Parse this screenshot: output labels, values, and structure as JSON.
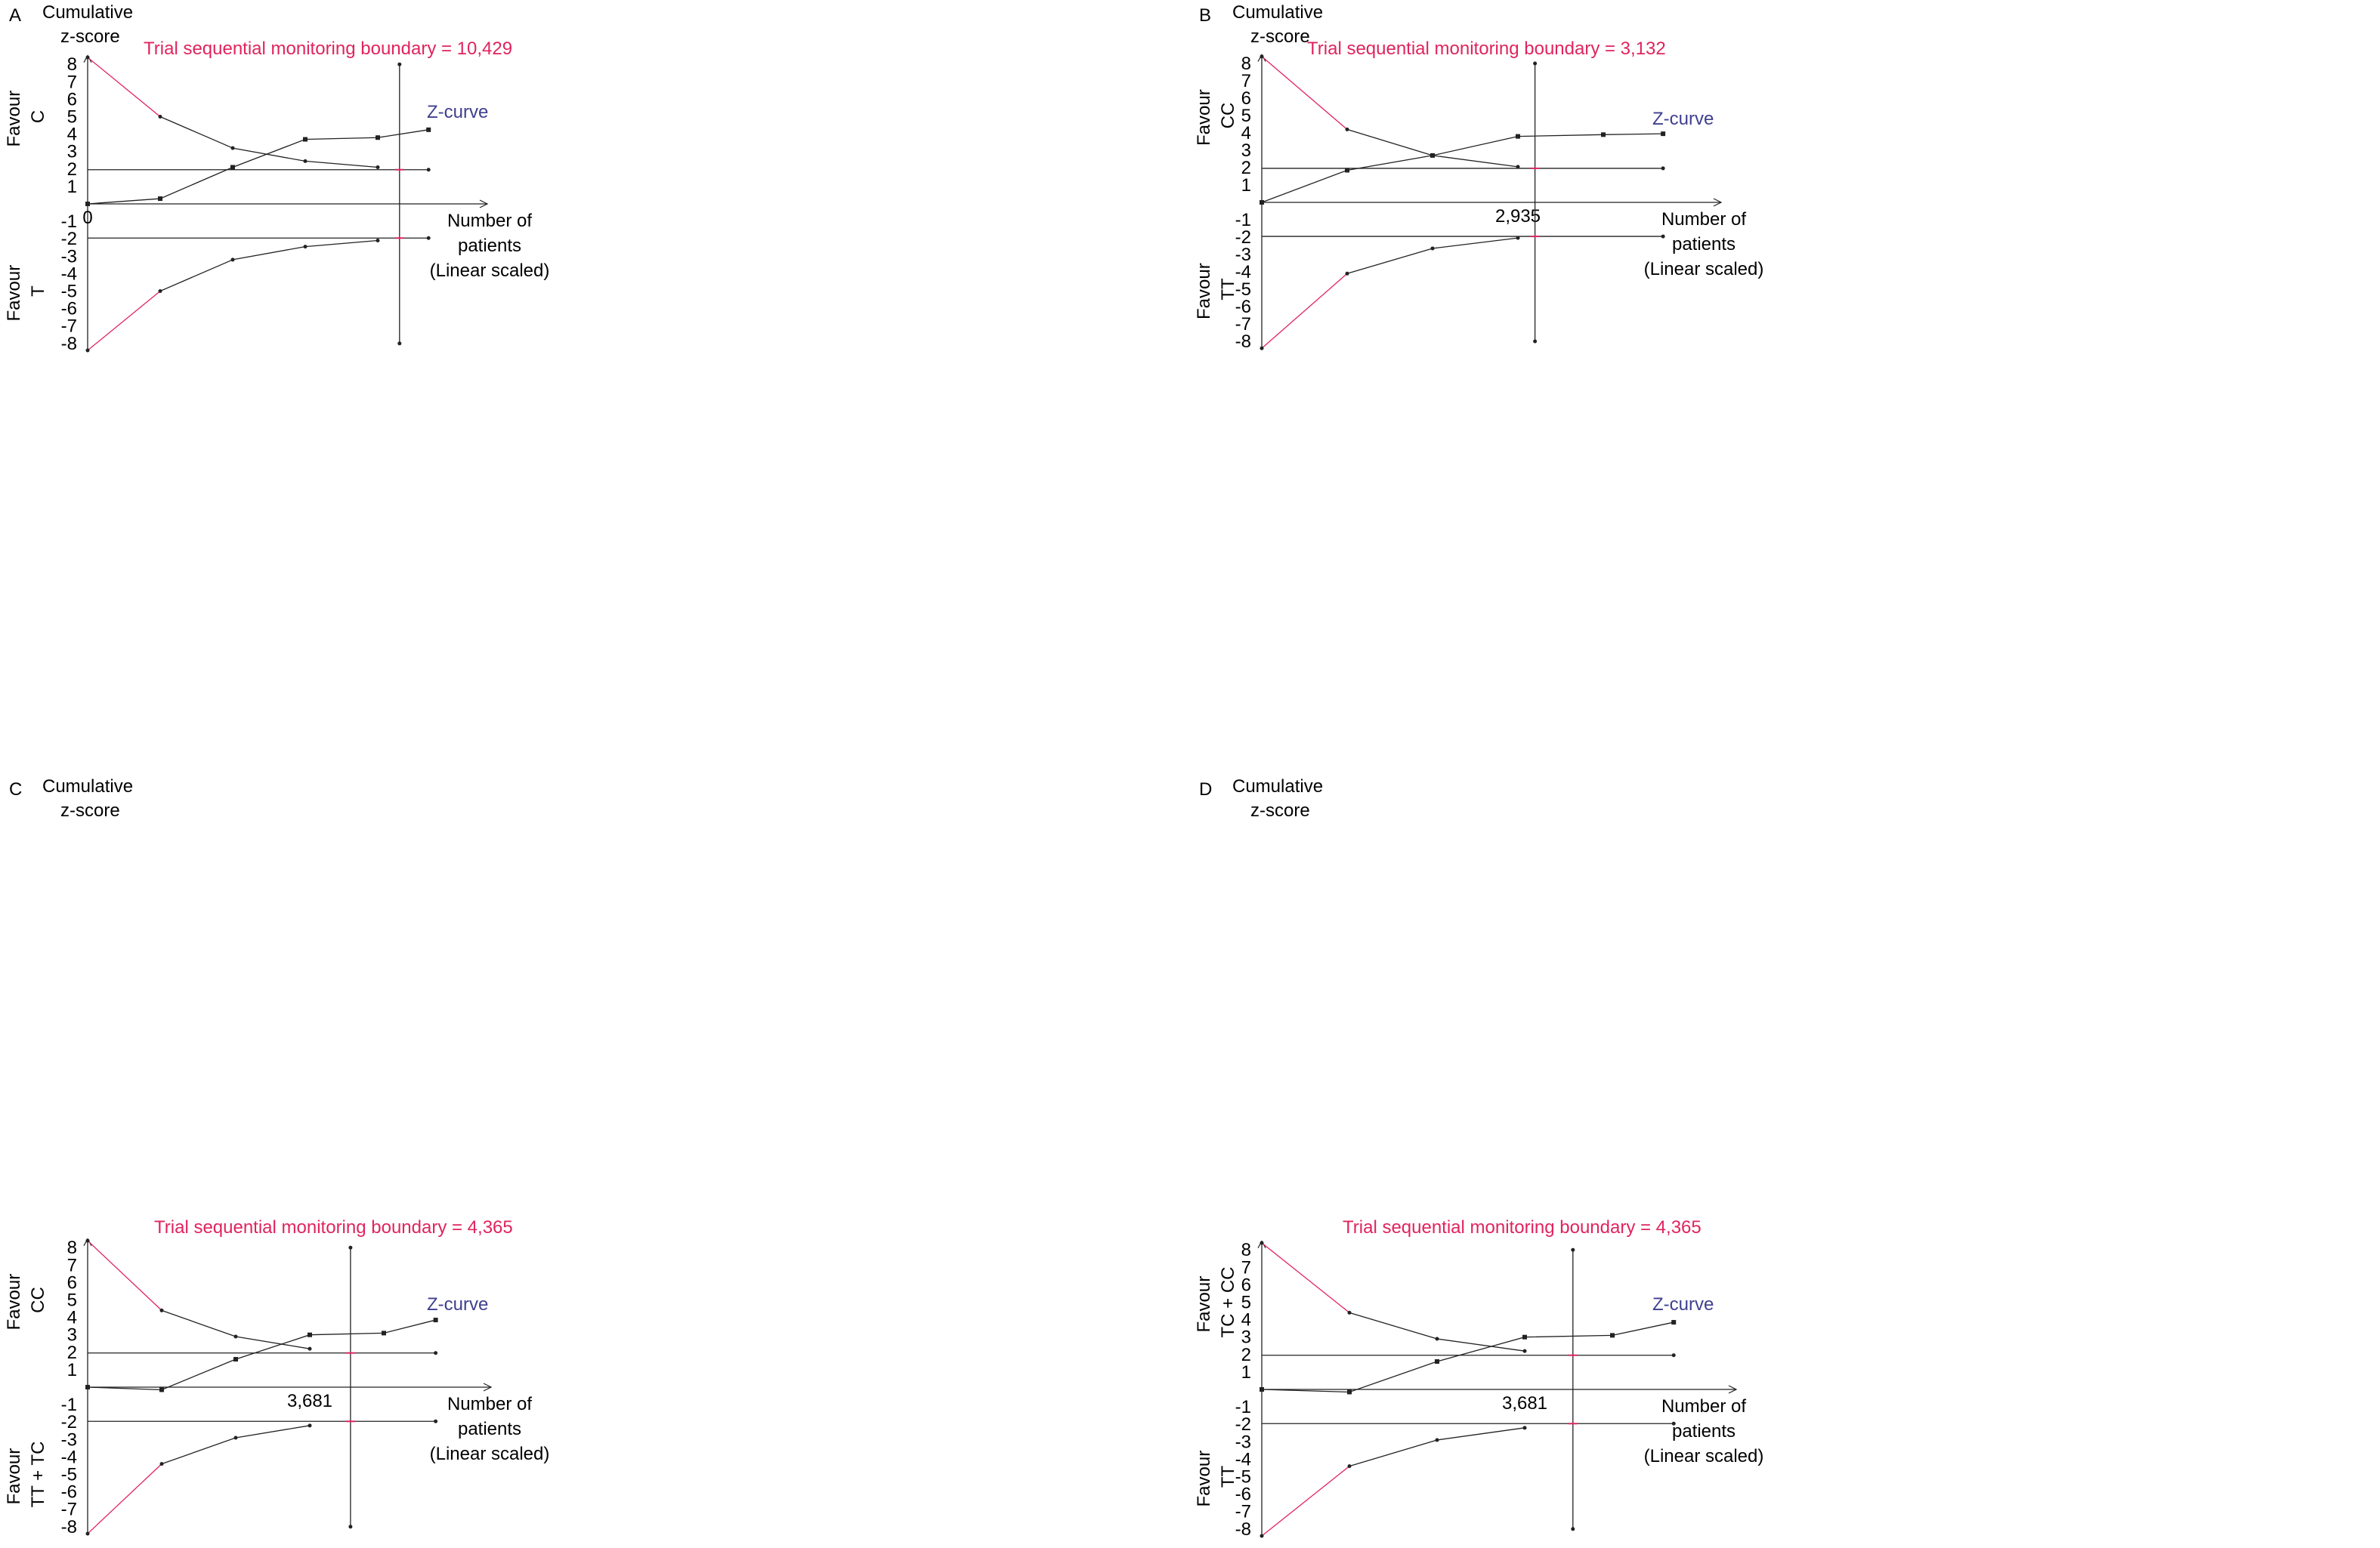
{
  "chart_data": [
    {
      "panel": "A",
      "type": "line",
      "title_line1": "Cumulative",
      "title_line2": "z-score",
      "favour_top": "Favour",
      "favour_top_group": "C",
      "favour_bottom": "Favour",
      "favour_bottom_group": "T",
      "boundary_label": "Trial sequential monitoring boundary = 10,429",
      "zcurve_label": "Z-curve",
      "xlabel_lines": [
        "Number of",
        "patients",
        "(Linear scaled)"
      ],
      "x_tick_label": "0",
      "x_tick_value": 0,
      "required_information_size": 10429,
      "yticks": [
        "8",
        "7",
        "6",
        "5",
        "4",
        "3",
        "2",
        "1",
        "-1",
        "-2",
        "-3",
        "-4",
        "-5",
        "-6",
        "-7",
        "-8"
      ],
      "ylim": [
        -8.5,
        8.5
      ],
      "z_curve": [
        [
          0,
          0
        ],
        [
          1,
          0.3
        ],
        [
          2,
          2.1
        ],
        [
          3,
          3.7
        ],
        [
          4,
          3.8
        ],
        [
          4.7,
          4.25
        ]
      ],
      "upper_boundary": [
        [
          0,
          8.4
        ],
        [
          1,
          5.0
        ],
        [
          2,
          3.2
        ],
        [
          3,
          2.45
        ],
        [
          4,
          2.1
        ]
      ],
      "lower_boundary": [
        [
          0,
          -8.4
        ],
        [
          1,
          -5.0
        ],
        [
          2,
          -3.2
        ],
        [
          3,
          -2.45
        ],
        [
          4,
          -2.1
        ]
      ],
      "conventional_upper": 1.96,
      "conventional_lower": -1.96,
      "conventional_end": 4.7,
      "ris_x": 4.3,
      "colors": {
        "boundary_text": "#e0245e",
        "zcurve_text": "#3f3f8f",
        "line": "#222222",
        "red_segment": "#e0245e"
      }
    },
    {
      "panel": "B",
      "type": "line",
      "title_line1": "Cumulative",
      "title_line2": "z-score",
      "favour_top": "Favour",
      "favour_top_group": "CC",
      "favour_bottom": "Favour",
      "favour_bottom_group": "TT",
      "boundary_label": "Trial sequential monitoring boundary = 3,132",
      "zcurve_label": "Z-curve",
      "xlabel_lines": [
        "Number of",
        "patients",
        "(Linear scaled)"
      ],
      "x_tick_label": "2,935",
      "x_tick_value": 2935,
      "required_information_size": 3132,
      "yticks": [
        "8",
        "7",
        "6",
        "5",
        "4",
        "3",
        "2",
        "1",
        "-1",
        "-2",
        "-3",
        "-4",
        "-5",
        "-6",
        "-7",
        "-8"
      ],
      "ylim": [
        -8.5,
        8.5
      ],
      "z_curve": [
        [
          0,
          0
        ],
        [
          1,
          1.85
        ],
        [
          2,
          2.7
        ],
        [
          3,
          3.8
        ],
        [
          4,
          3.9
        ],
        [
          4.7,
          3.95
        ]
      ],
      "upper_boundary": [
        [
          0,
          8.4
        ],
        [
          1,
          4.2
        ],
        [
          2,
          2.7
        ],
        [
          3,
          2.05
        ]
      ],
      "lower_boundary": [
        [
          0,
          -8.4
        ],
        [
          1,
          -4.1
        ],
        [
          2,
          -2.65
        ],
        [
          3,
          -2.05
        ]
      ],
      "conventional_upper": 1.96,
      "conventional_lower": -1.96,
      "conventional_end": 4.7,
      "ris_x": 3.2,
      "colors": {
        "boundary_text": "#e0245e",
        "zcurve_text": "#3f3f8f",
        "line": "#222222",
        "red_segment": "#e0245e"
      }
    },
    {
      "panel": "C",
      "type": "line",
      "title_line1": "Cumulative",
      "title_line2": "z-score",
      "favour_top": "Favour",
      "favour_top_group": "CC",
      "favour_bottom": "Favour",
      "favour_bottom_group": "TT + TC",
      "boundary_label": "Trial sequential monitoring boundary = 4,365",
      "zcurve_label": "Z-curve",
      "xlabel_lines": [
        "Number of",
        "patients",
        "(Linear scaled)"
      ],
      "x_tick_label": "3,681",
      "x_tick_value": 3681,
      "required_information_size": 4365,
      "yticks": [
        "8",
        "7",
        "6",
        "5",
        "4",
        "3",
        "2",
        "1",
        "-1",
        "-2",
        "-3",
        "-4",
        "-5",
        "-6",
        "-7",
        "-8"
      ],
      "ylim": [
        -8.5,
        8.5
      ],
      "z_curve": [
        [
          0,
          0
        ],
        [
          1,
          -0.15
        ],
        [
          2,
          1.6
        ],
        [
          3,
          3.0
        ],
        [
          4,
          3.1
        ],
        [
          4.7,
          3.85
        ]
      ],
      "upper_boundary": [
        [
          0,
          8.4
        ],
        [
          1,
          4.4
        ],
        [
          2,
          2.9
        ],
        [
          3,
          2.2
        ]
      ],
      "lower_boundary": [
        [
          0,
          -8.4
        ],
        [
          1,
          -4.4
        ],
        [
          2,
          -2.9
        ],
        [
          3,
          -2.2
        ]
      ],
      "conventional_upper": 1.96,
      "conventional_lower": -1.96,
      "conventional_end": 4.7,
      "ris_x": 3.55,
      "colors": {
        "boundary_text": "#e0245e",
        "zcurve_text": "#3f3f8f",
        "line": "#222222",
        "red_segment": "#e0245e"
      }
    },
    {
      "panel": "D",
      "type": "line",
      "title_line1": "Cumulative",
      "title_line2": "z-score",
      "favour_top": "Favour",
      "favour_top_group": "TC + CC",
      "favour_bottom": "Favour",
      "favour_bottom_group": "TT",
      "boundary_label": "Trial sequential monitoring boundary = 4,365",
      "zcurve_label": "Z-curve",
      "xlabel_lines": [
        "Number of",
        "patients",
        "(Linear scaled)"
      ],
      "x_tick_label": "3,681",
      "x_tick_value": 3681,
      "required_information_size": 4365,
      "yticks": [
        "8",
        "7",
        "6",
        "5",
        "4",
        "3",
        "2",
        "1",
        "-1",
        "-2",
        "-3",
        "-4",
        "-5",
        "-6",
        "-7",
        "-8"
      ],
      "ylim": [
        -8.5,
        8.5
      ],
      "z_curve": [
        [
          0,
          0
        ],
        [
          1,
          -0.15
        ],
        [
          2,
          1.6
        ],
        [
          3,
          3.0
        ],
        [
          4,
          3.1
        ],
        [
          4.7,
          3.85
        ]
      ],
      "upper_boundary": [
        [
          0,
          8.4
        ],
        [
          1,
          4.4
        ],
        [
          2,
          2.9
        ],
        [
          3,
          2.2
        ]
      ],
      "lower_boundary": [
        [
          0,
          -8.4
        ],
        [
          1,
          -4.4
        ],
        [
          2,
          -2.9
        ],
        [
          3,
          -2.2
        ]
      ],
      "conventional_upper": 1.96,
      "conventional_lower": -1.96,
      "conventional_end": 4.7,
      "ris_x": 3.55,
      "colors": {
        "boundary_text": "#e0245e",
        "zcurve_text": "#3f3f8f",
        "line": "#222222",
        "red_segment": "#e0245e"
      }
    }
  ]
}
